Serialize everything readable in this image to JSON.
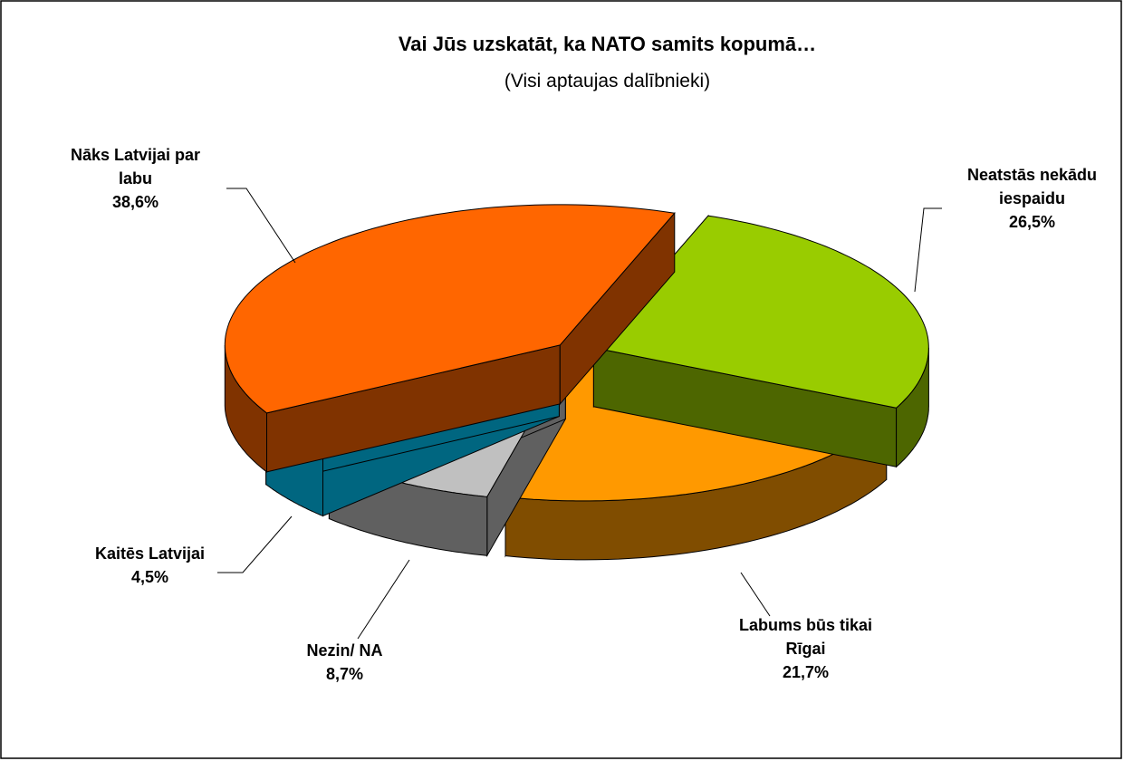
{
  "chart_data": {
    "type": "pie3d",
    "title": "Vai Jūs uzskatāt, ka NATO samits kopumā…",
    "subtitle": "(Visi aptaujas dalībnieki)",
    "categories": [
      "Neatstās nekādu iespaidu",
      "Labums būs tikai Rīgai",
      "Nezin/ NA",
      "Kaitēs Latvijai",
      "Nāks Latvijai par labu"
    ],
    "values": [
      26.5,
      21.7,
      8.7,
      4.5,
      38.6
    ],
    "value_labels": [
      "26,5%",
      "21,7%",
      "8,7%",
      "4,5%",
      "38,6%"
    ],
    "colors": [
      "#99cc00",
      "#ff9900",
      "#c0c0c0",
      "#00ccff",
      "#ff6600"
    ]
  }
}
